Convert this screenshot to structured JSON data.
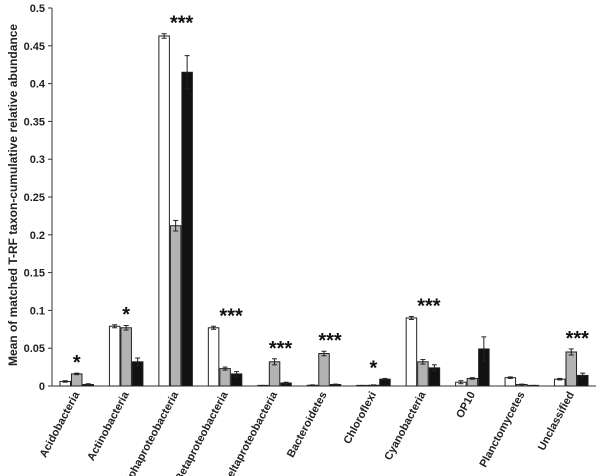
{
  "chart_data": {
    "type": "bar",
    "ylabel": "Mean of matched T-RF taxon-cumulative relative abundance",
    "xlabel": "",
    "ylim": [
      0,
      0.5
    ],
    "yticks": [
      "0",
      "0.05",
      "0.1",
      "0.15",
      "0.2",
      "0.25",
      "0.3",
      "0.35",
      "0.4",
      "0.45",
      "0.5"
    ],
    "categories": [
      "Acidobacteria",
      "Actinobacteria",
      "Alphaproteobacteria",
      "Betaproteobacteria",
      "Deltaproteobacteria",
      "Bacteroidetes",
      "Chloroflexi",
      "Cyanobacteria",
      "OP10",
      "Planctomycetes",
      "Unclassified"
    ],
    "series": [
      {
        "color": "#ffffff",
        "values": [
          0.006,
          0.079,
          0.463,
          0.077,
          0.0005,
          0.001,
          0.0005,
          0.09,
          0.005,
          0.011,
          0.009
        ],
        "errors": [
          0.001,
          0.002,
          0.003,
          0.002,
          0.0003,
          0.0005,
          0.0003,
          0.002,
          0.002,
          0.001,
          0.001
        ]
      },
      {
        "color": "#b3b3b3",
        "values": [
          0.016,
          0.077,
          0.212,
          0.023,
          0.032,
          0.043,
          0.001,
          0.032,
          0.01,
          0.002,
          0.045
        ],
        "errors": [
          0.001,
          0.003,
          0.007,
          0.002,
          0.004,
          0.003,
          0.0005,
          0.003,
          0.001,
          0.0005,
          0.004
        ]
      },
      {
        "color": "#111111",
        "values": [
          0.002,
          0.032,
          0.415,
          0.016,
          0.004,
          0.002,
          0.009,
          0.024,
          0.049,
          0.0005,
          0.014
        ],
        "errors": [
          0.001,
          0.005,
          0.022,
          0.003,
          0.001,
          0.0005,
          0.001,
          0.004,
          0.016,
          0.0003,
          0.003
        ]
      }
    ],
    "significance": [
      "*",
      "*",
      "***",
      "***",
      "***",
      "***",
      "*",
      "***",
      "",
      "",
      "***"
    ],
    "grid": false,
    "legend": "none"
  }
}
